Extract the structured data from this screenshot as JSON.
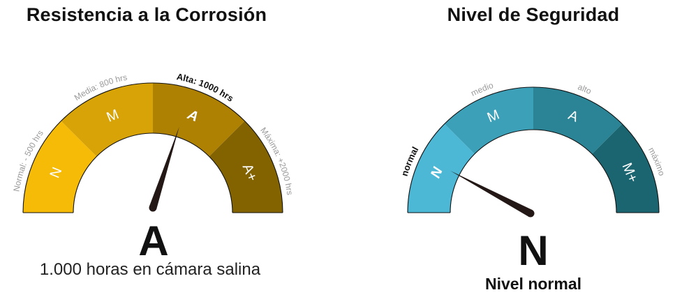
{
  "corrosion": {
    "title": "Resistencia a la Corrosión",
    "segments": [
      {
        "letter": "N",
        "label": "Normal: - 500 hrs",
        "color": "#F5BB07",
        "active": false
      },
      {
        "letter": "M",
        "label": "Media: 800 hrs",
        "color": "#D8A307",
        "active": false
      },
      {
        "letter": "A",
        "label": "Alta: 1000 hrs",
        "color": "#AE8103",
        "active": true
      },
      {
        "letter": "A+",
        "label": "Máxima: +2000 hrs",
        "color": "#836300",
        "active": false
      }
    ],
    "value_letter": "A",
    "caption": "1.000 horas en cámara salina"
  },
  "security": {
    "title": "Nivel de Seguridad",
    "segments": [
      {
        "letter": "N",
        "label": "normal",
        "color": "#4CB8D6",
        "active": true
      },
      {
        "letter": "M",
        "label": "medio",
        "color": "#3DA0B9",
        "active": false
      },
      {
        "letter": "A",
        "label": "alto",
        "color": "#2A8495",
        "active": false
      },
      {
        "letter": "M+",
        "label": "máximo",
        "color": "#1A6570",
        "active": false
      }
    ],
    "value_letter": "N",
    "caption": "Nivel normal"
  },
  "colors": {
    "needle": "#231815",
    "label_muted": "#9a9a9a"
  }
}
